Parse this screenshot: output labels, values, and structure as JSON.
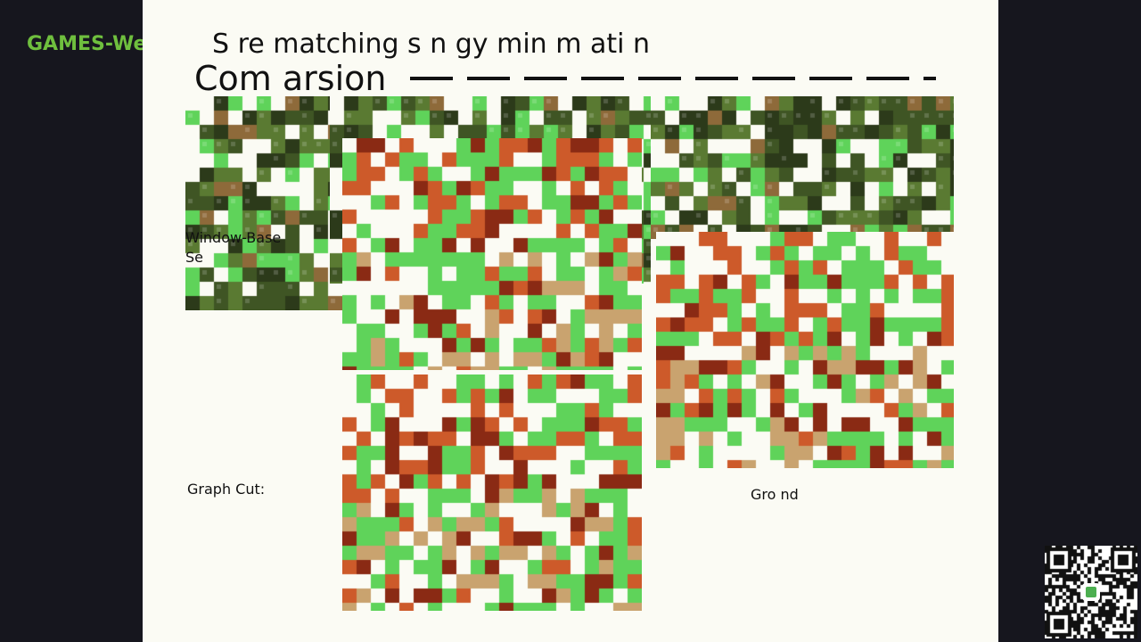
{
  "brand": {
    "text": "GAMES-We"
  },
  "slide": {
    "title": "S re  matching  s  n  gy min m ati n",
    "subtitle": "Com arsion",
    "labels": {
      "window_based_line1": "Window-Base",
      "window_based_line2": "Se",
      "graph_cut": "Graph Cut:",
      "ground": "Gro nd"
    }
  },
  "colors": {
    "page_bg": "#16161e",
    "slide_bg": "#fbfbf4",
    "brand": "#6fbf3e",
    "glitch_green": "#5fd35a",
    "disparity_orange": "#cd5a2a",
    "disparity_tan": "#c9a36f",
    "disparity_dark": "#8a2a14",
    "foliage_dark": "#2c3a1a",
    "foliage_mid": "#5a7a32"
  }
}
